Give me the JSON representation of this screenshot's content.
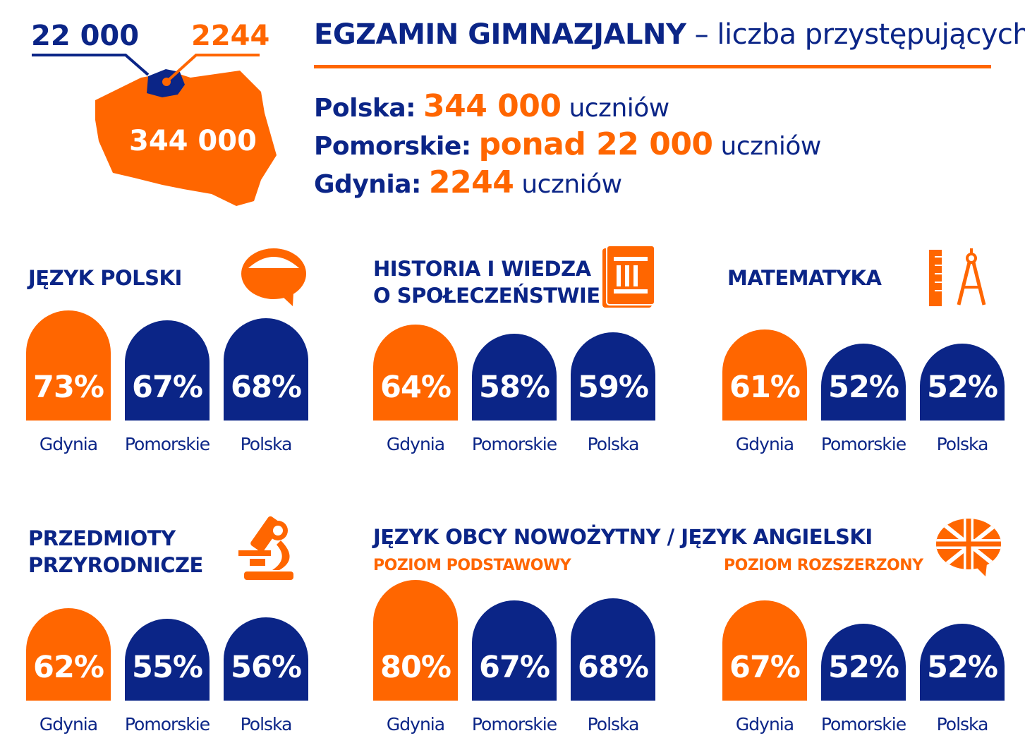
{
  "colors": {
    "navy": "#0b2587",
    "orange": "#ff6600"
  },
  "map": {
    "pomorskie_label": "22 000",
    "gdynia_label": "2244",
    "poland_label": "344 000"
  },
  "header": {
    "title_bold": "EGZAMIN GIMNAZJALNY",
    "title_rest": " – liczba przystępujących"
  },
  "stats": [
    {
      "label": "Polska:",
      "value": "344 000",
      "unit": "uczniów"
    },
    {
      "label": "Pomorskie:",
      "value": "ponad 22 000",
      "unit": "uczniów"
    },
    {
      "label": "Gdynia:",
      "value": "2244",
      "unit": "uczniów"
    }
  ],
  "regions": [
    "Gdynia",
    "Pomorskie",
    "Polska"
  ],
  "sections": [
    {
      "title": [
        "JĘZYK POLSKI"
      ],
      "icon": "speech-bubble-icon",
      "values": [
        73,
        67,
        68
      ]
    },
    {
      "title": [
        "HISTORIA I WIEDZA",
        "O SPOŁECZEŃSTWIE"
      ],
      "icon": "book-column-icon",
      "values": [
        64,
        58,
        59
      ]
    },
    {
      "title": [
        "MATEMATYKA"
      ],
      "icon": "ruler-compass-icon",
      "values": [
        61,
        52,
        52
      ]
    },
    {
      "title": [
        "PRZEDMIOTY",
        "PRZYRODNICZE"
      ],
      "icon": "microscope-icon",
      "values": [
        62,
        55,
        56
      ]
    },
    {
      "title": [
        "JĘZYK OBCY NOWOŻYTNY / JĘZYK ANGIELSKI"
      ],
      "subtitle": "POZIOM PODSTAWOWY",
      "icon": "uk-flag-bubble-icon",
      "values": [
        80,
        67,
        68
      ]
    },
    {
      "subtitle": "POZIOM ROZSZERZONY",
      "values": [
        67,
        52,
        52
      ]
    }
  ]
}
